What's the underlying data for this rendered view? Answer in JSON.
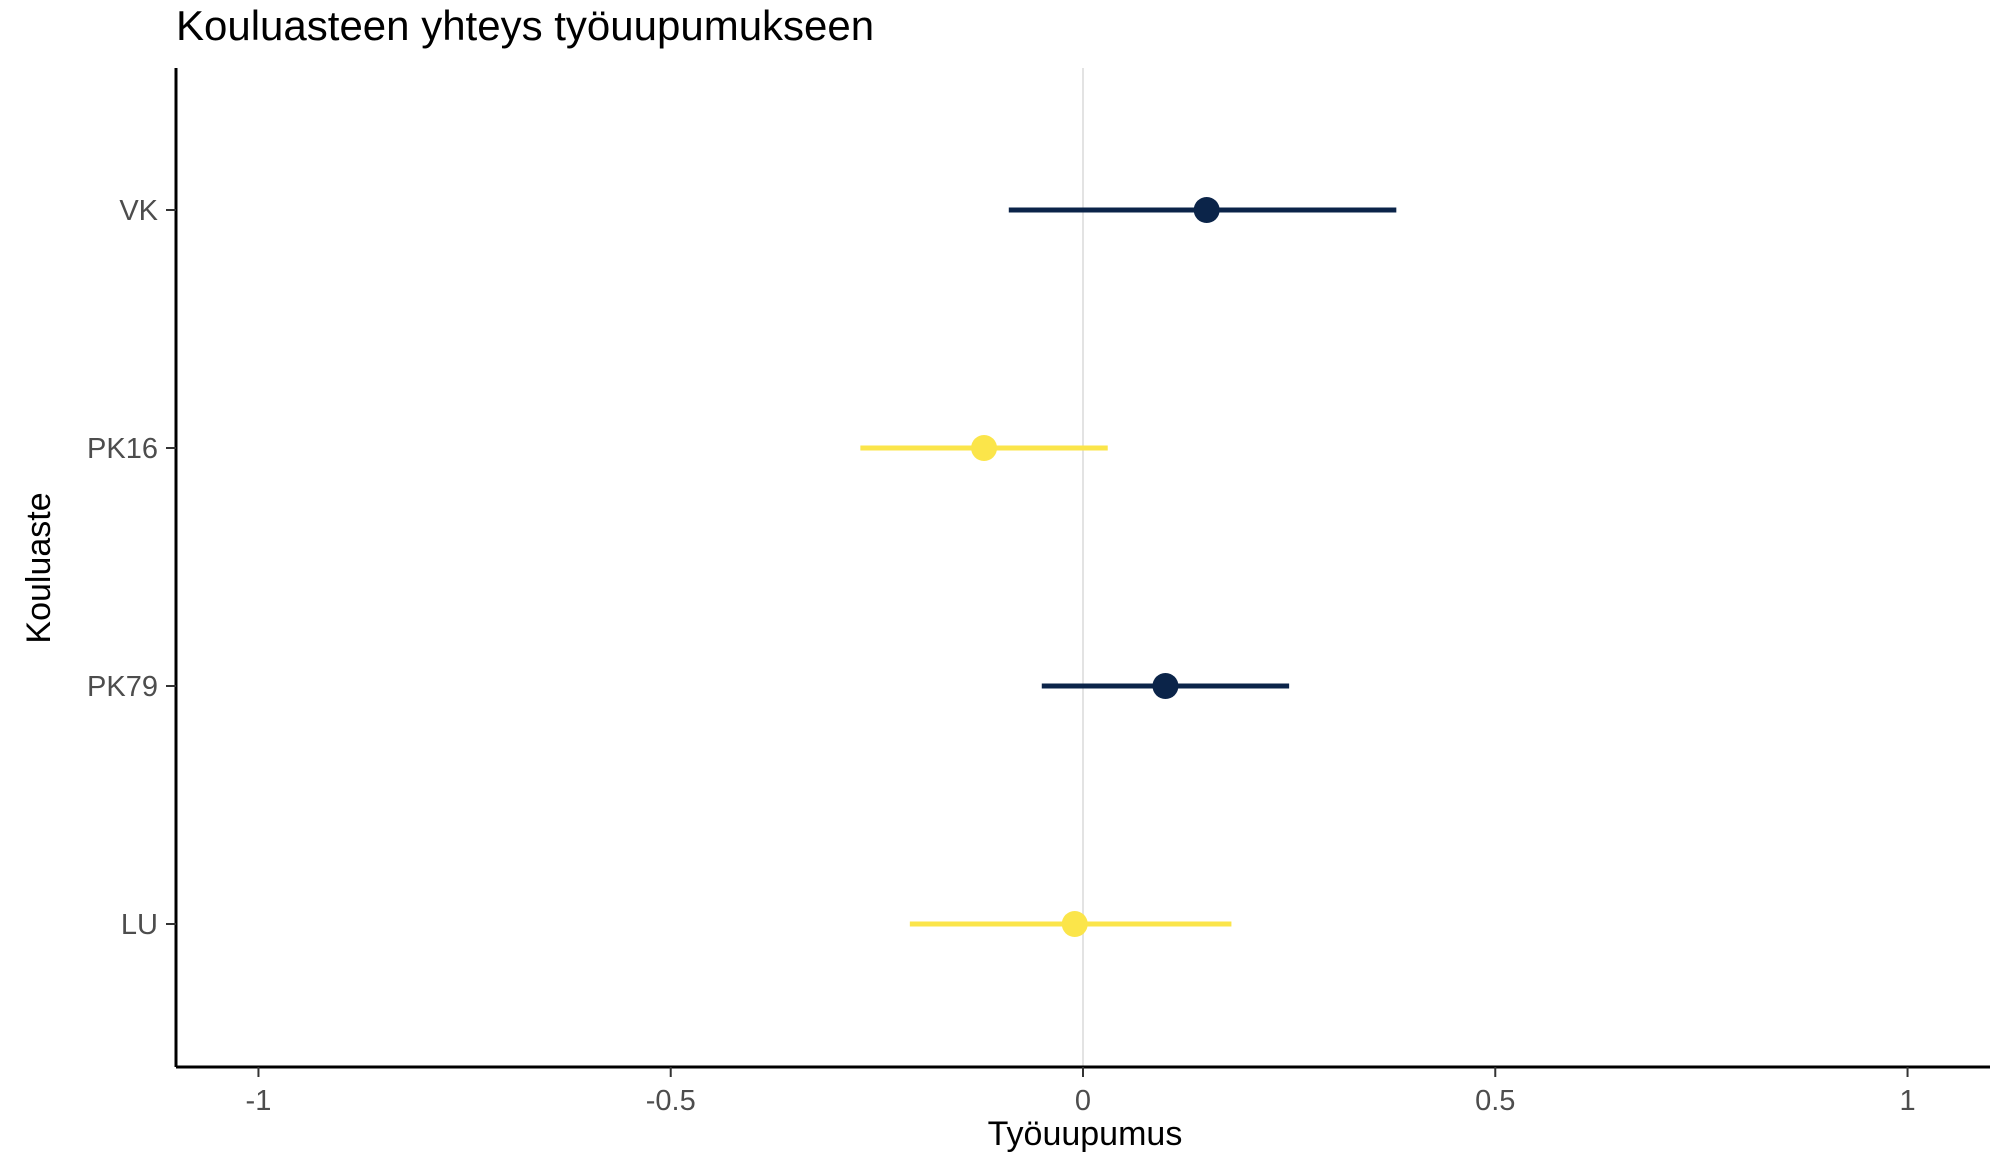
{
  "chart_data": {
    "type": "scatter",
    "title": "Kouluasteen yhteys työuupumukseen",
    "xlabel": "Työuupumus",
    "ylabel": "Kouluaste",
    "xlim": [
      -1.1,
      1.1
    ],
    "x_ticks": [
      -1,
      -0.5,
      0,
      0.5,
      1
    ],
    "x_tick_labels": [
      "-1",
      "-0.5",
      "0",
      "0.5",
      "1"
    ],
    "categories": [
      "VK",
      "PK16",
      "PK79",
      "LU"
    ],
    "reference_line_x": 0,
    "grid": false,
    "legend": "none",
    "points": [
      {
        "category": "VK",
        "estimate": 0.15,
        "lower": -0.09,
        "upper": 0.38,
        "color": "#0b2449"
      },
      {
        "category": "PK16",
        "estimate": -0.12,
        "lower": -0.27,
        "upper": 0.03,
        "color": "#fbe54a"
      },
      {
        "category": "PK79",
        "estimate": 0.1,
        "lower": -0.05,
        "upper": 0.25,
        "color": "#0b2449"
      },
      {
        "category": "LU",
        "estimate": -0.01,
        "lower": -0.21,
        "upper": 0.18,
        "color": "#fbe54a"
      }
    ]
  }
}
